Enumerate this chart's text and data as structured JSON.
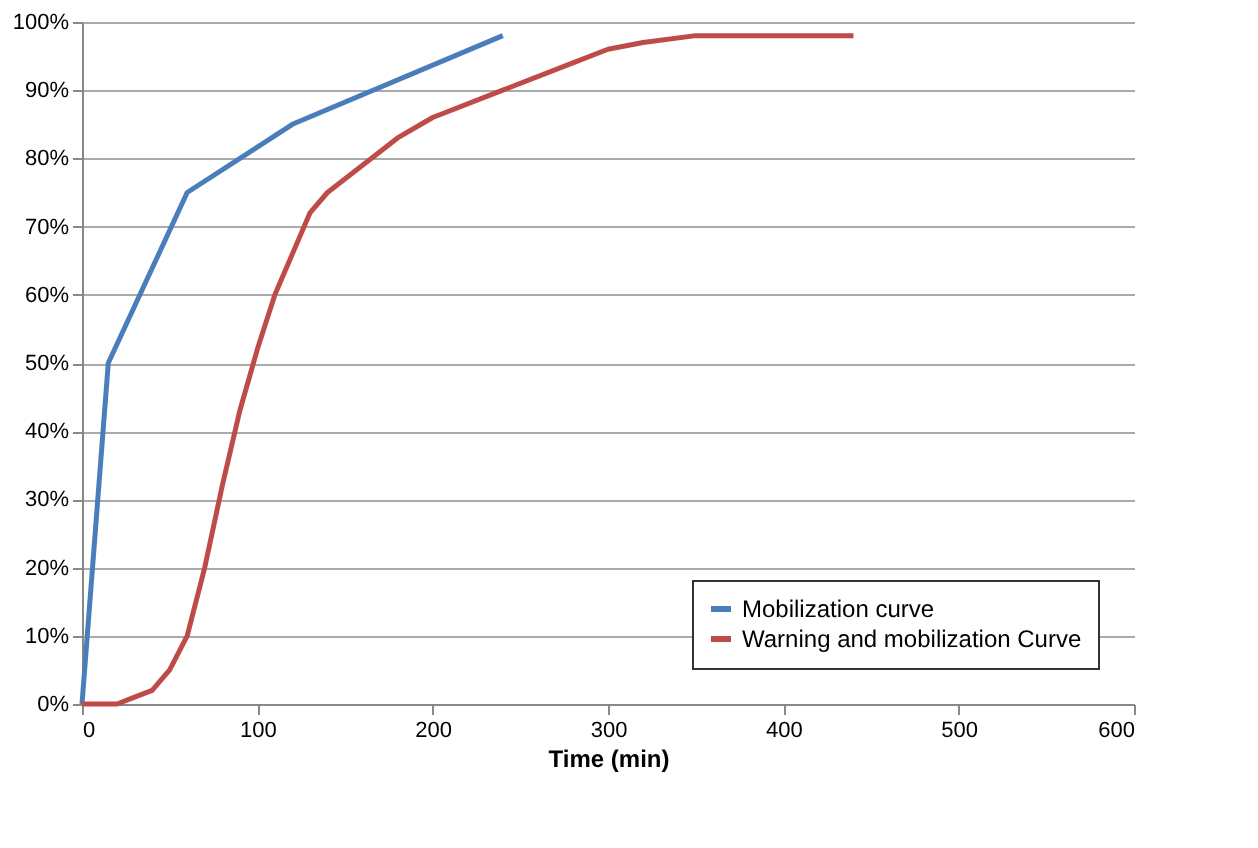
{
  "chart_data": {
    "type": "line",
    "xlabel": "Time (min)",
    "xlim": [
      0,
      600
    ],
    "xticks": [
      0,
      100,
      200,
      300,
      400,
      500,
      600
    ],
    "ylim": [
      0,
      100
    ],
    "yticks": [
      {
        "value": 0,
        "label": "0%"
      },
      {
        "value": 10,
        "label": "10%"
      },
      {
        "value": 20,
        "label": "20%"
      },
      {
        "value": 30,
        "label": "30%"
      },
      {
        "value": 40,
        "label": "40%"
      },
      {
        "value": 50,
        "label": "50%"
      },
      {
        "value": 60,
        "label": "60%"
      },
      {
        "value": 70,
        "label": "70%"
      },
      {
        "value": 80,
        "label": "80%"
      },
      {
        "value": 90,
        "label": "90%"
      },
      {
        "value": 100,
        "label": "100%"
      }
    ],
    "grid": "y",
    "legend": "bottom right",
    "marker": "none",
    "line_style": "solid",
    "series": [
      {
        "name": "Mobilization curve",
        "color": "#4a7ebb",
        "x": [
          0,
          15,
          60,
          120,
          240
        ],
        "values": [
          0,
          50,
          75,
          85,
          98
        ]
      },
      {
        "name": "Warning and mobilization Curve",
        "color": "#be4b48",
        "x": [
          0,
          20,
          30,
          40,
          50,
          60,
          70,
          80,
          90,
          100,
          110,
          120,
          130,
          140,
          160,
          180,
          200,
          240,
          280,
          300,
          320,
          350,
          440
        ],
        "values": [
          0,
          0,
          1,
          2,
          5,
          10,
          20,
          32,
          43,
          52,
          60,
          66,
          72,
          75,
          79,
          83,
          86,
          90,
          94,
          96,
          97,
          98,
          98
        ]
      }
    ]
  }
}
